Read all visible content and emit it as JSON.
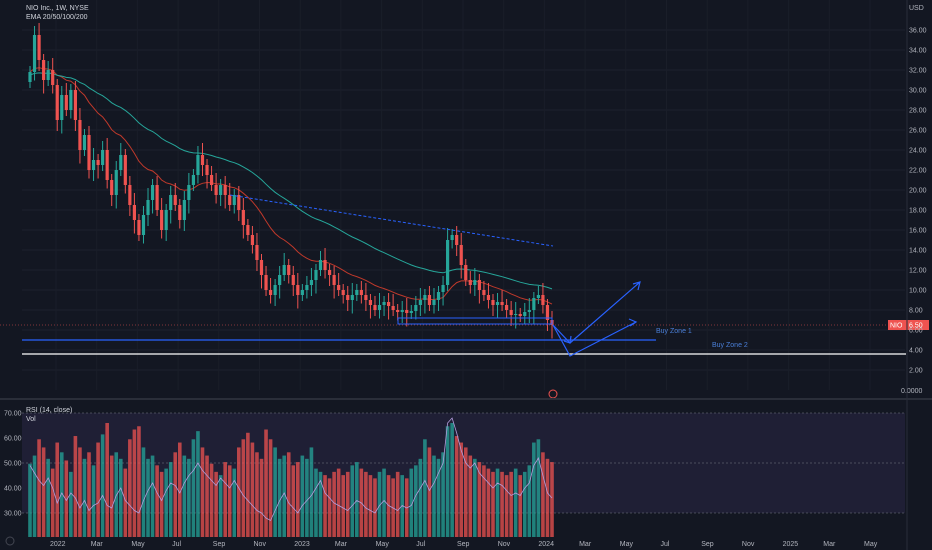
{
  "header": {
    "symbol_line": "NIO Inc., 1W, NYSE",
    "indicator_line": "EMA 20/50/100/200"
  },
  "rsi_panel": {
    "title": "RSI (14, close)",
    "sub": "Vol"
  },
  "price_tag": "6.50",
  "symbol_tag": "NIO",
  "currency": "USD",
  "colors": {
    "background": "#131722",
    "up": "#26a69a",
    "down": "#ef5350",
    "ema_fast": "#c0392b",
    "ema_slow": "#26a69a",
    "trend_line": "#2962ff",
    "buy_zone": "#2962ff",
    "support": "#ffffff",
    "rsi_band": "#7e57c2"
  },
  "icons": {
    "chart_logo": "tradingview-logo-icon",
    "event_marker": "earnings-event-icon"
  },
  "chart_data": [
    {
      "type": "candlestick",
      "title": "NIO Inc., 1W, NYSE",
      "y_axis": {
        "ticks": [
          2,
          4,
          6,
          8,
          10,
          12,
          14,
          16,
          18,
          20,
          22,
          24,
          26,
          28,
          30,
          32,
          34,
          36
        ],
        "tick_labels": [
          "2.00",
          "4.00",
          "6.00",
          "8.00",
          "10.00",
          "12.00",
          "14.00",
          "16.00",
          "18.00",
          "20.00",
          "22.00",
          "24.00",
          "26.00",
          "28.00",
          "30.00",
          "32.00",
          "34.00",
          "36.00"
        ],
        "ylim": [
          0,
          38
        ],
        "bottom_label": "0.0000"
      },
      "x_axis": {
        "labels": [
          "2022",
          "Mar",
          "May",
          "Jul",
          "Sep",
          "Nov",
          "2023",
          "Mar",
          "May",
          "Jul",
          "Sep",
          "Nov",
          "2024",
          "Mar",
          "May",
          "Jul",
          "Sep",
          "Nov",
          "2025",
          "Mar",
          "May"
        ]
      },
      "close_series": [
        31.8,
        35.5,
        33.0,
        31.0,
        32.0,
        30.5,
        27.0,
        29.5,
        28.0,
        30.0,
        27.0,
        24.0,
        25.5,
        22.0,
        23.0,
        22.5,
        24.0,
        21.0,
        19.5,
        22.0,
        23.5,
        20.5,
        18.5,
        17.0,
        15.5,
        17.5,
        19.0,
        20.5,
        18.0,
        16.0,
        18.0,
        19.5,
        18.5,
        17.0,
        19.0,
        20.5,
        21.5,
        23.5,
        22.5,
        21.5,
        20.5,
        19.5,
        20.5,
        19.5,
        18.5,
        19.5,
        18.0,
        16.5,
        15.5,
        14.5,
        13.0,
        11.5,
        10.0,
        9.5,
        10.5,
        11.5,
        12.5,
        11.5,
        10.5,
        9.5,
        10.0,
        10.5,
        11.0,
        12.0,
        13.0,
        12.0,
        11.5,
        10.5,
        10.0,
        9.5,
        9.0,
        9.5,
        10.0,
        9.5,
        9.0,
        8.5,
        8.0,
        8.5,
        8.8,
        8.4,
        8.0,
        7.8,
        8.0,
        7.7,
        7.9,
        8.5,
        9.0,
        9.5,
        8.5,
        9.0,
        9.8,
        10.5,
        15.0,
        15.5,
        14.5,
        12.5,
        11.0,
        10.5,
        11.0,
        10.0,
        9.5,
        9.0,
        8.5,
        8.8,
        8.5,
        8.0,
        7.5,
        7.6,
        7.4,
        7.8,
        8.0,
        9.2,
        9.5,
        8.5,
        7.0,
        6.5
      ],
      "volume_color_pattern": "green=up week, red=down week",
      "buy_zone_1": {
        "price": 5.0,
        "label": "Buy Zone 1"
      },
      "buy_zone_2": {
        "price": 3.6,
        "label": "Buy Zone 2"
      },
      "support_box": [
        6.6,
        7.2
      ],
      "last_price": 6.5
    },
    {
      "type": "line",
      "title": "RSI (14, close)",
      "y_axis": {
        "ticks": [
          30,
          40,
          50,
          60,
          70
        ],
        "tick_labels": [
          "30.00",
          "40.00",
          "50.00",
          "60.00",
          "70.00"
        ],
        "ylim": [
          26,
          72
        ]
      },
      "rsi_values": [
        49,
        46,
        43,
        41,
        44,
        40,
        34,
        38,
        35,
        38,
        36,
        32,
        35,
        31,
        33,
        34,
        37,
        33,
        32,
        37,
        40,
        35,
        33,
        31,
        30,
        35,
        39,
        42,
        38,
        35,
        39,
        42,
        41,
        38,
        42,
        45,
        47,
        50,
        47,
        45,
        43,
        41,
        44,
        42,
        40,
        43,
        40,
        37,
        35,
        33,
        31,
        30,
        28,
        27,
        31,
        35,
        38,
        34,
        32,
        30,
        33,
        35,
        37,
        40,
        43,
        38,
        36,
        34,
        33,
        32,
        31,
        33,
        35,
        34,
        32,
        31,
        30,
        33,
        35,
        33,
        32,
        31,
        33,
        32,
        33,
        37,
        40,
        43,
        39,
        42,
        46,
        50,
        66,
        68,
        62,
        55,
        50,
        48,
        50,
        46,
        44,
        42,
        40,
        42,
        41,
        39,
        37,
        38,
        37,
        40,
        42,
        49,
        52,
        45,
        38,
        36
      ],
      "volume_values": [
        45,
        50,
        60,
        55,
        48,
        42,
        58,
        52,
        47,
        40,
        62,
        55,
        48,
        52,
        44,
        58,
        63,
        70,
        50,
        52,
        48,
        42,
        60,
        66,
        68,
        55,
        48,
        50,
        44,
        40,
        42,
        46,
        52,
        58,
        50,
        48,
        60,
        65,
        55,
        50,
        45,
        40,
        38,
        46,
        44,
        42,
        55,
        60,
        64,
        58,
        52,
        48,
        66,
        60,
        55,
        48,
        50,
        52,
        44,
        46,
        50,
        48,
        55,
        42,
        40,
        38,
        36,
        40,
        42,
        38,
        40,
        44,
        46,
        42,
        40,
        38,
        36,
        40,
        42,
        38,
        36,
        40,
        38,
        36,
        42,
        44,
        48,
        60,
        55,
        50,
        48,
        52,
        68,
        70,
        62,
        58,
        55,
        50,
        48,
        46,
        44,
        42,
        40,
        42,
        40,
        38,
        40,
        42,
        38,
        40,
        44,
        58,
        60,
        52,
        48,
        46
      ]
    }
  ]
}
